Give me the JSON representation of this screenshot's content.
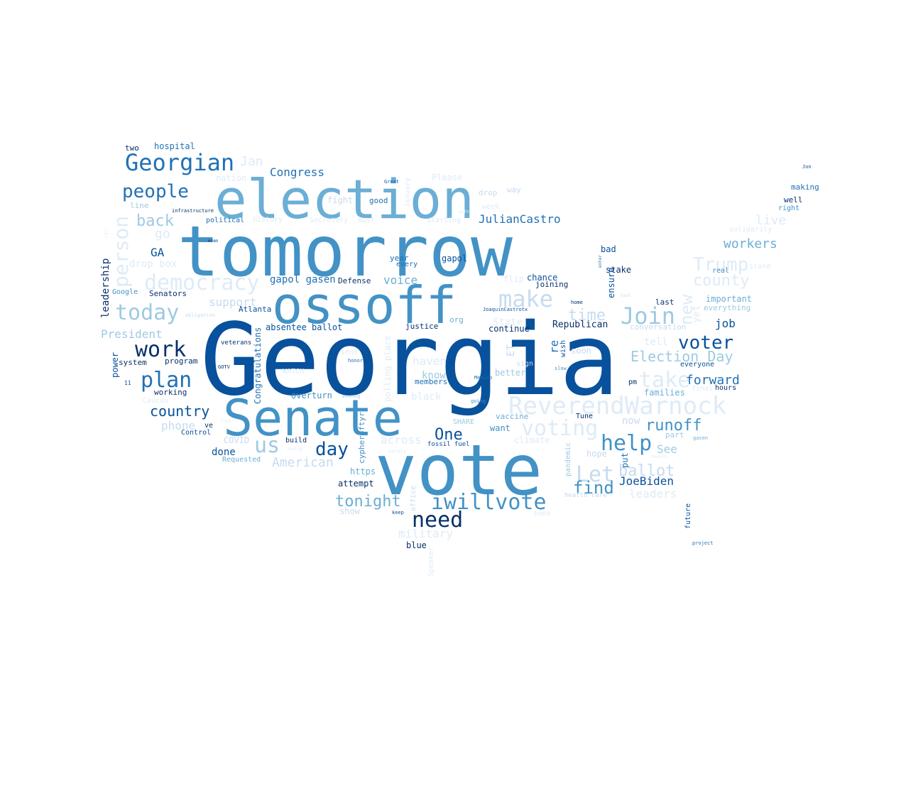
{
  "palette": {
    "c1": "#08306b",
    "c2": "#08519c",
    "c3": "#2171b5",
    "c4": "#4292c6",
    "c5": "#6baed6",
    "c6": "#9ecae1",
    "c7": "#c6dbef",
    "c8": "#deebf7"
  },
  "words": [
    {
      "text": "Georgia",
      "tone": "c2"
    },
    {
      "text": "tomorrow",
      "tone": "c4"
    },
    {
      "text": "vote",
      "tone": "c4"
    },
    {
      "text": "election",
      "tone": "c5"
    },
    {
      "text": "ossoff",
      "tone": "c4"
    },
    {
      "text": "Senate",
      "tone": "c4"
    },
    {
      "text": "ReverendWarnock",
      "tone": "c8"
    },
    {
      "text": "Georgian",
      "tone": "c3"
    },
    {
      "text": "iwillvote",
      "tone": "c4"
    },
    {
      "text": "need",
      "tone": "c1"
    },
    {
      "text": "democracy",
      "tone": "c8"
    },
    {
      "text": "today",
      "tone": "c6"
    },
    {
      "text": "work",
      "tone": "c1"
    },
    {
      "text": "plan",
      "tone": "c3"
    },
    {
      "text": "people",
      "tone": "c3"
    },
    {
      "text": "person",
      "tone": "c8"
    },
    {
      "text": "make",
      "tone": "c7"
    },
    {
      "text": "Join",
      "tone": "c6"
    },
    {
      "text": "help",
      "tone": "c4"
    },
    {
      "text": "take",
      "tone": "c8"
    },
    {
      "text": "Let",
      "tone": "c7"
    },
    {
      "text": "voting",
      "tone": "c8"
    },
    {
      "text": "Trump",
      "tone": "c8"
    },
    {
      "text": "voter",
      "tone": "c2"
    },
    {
      "text": "us",
      "tone": "c6"
    },
    {
      "text": "day",
      "tone": "c2"
    },
    {
      "text": "find",
      "tone": "c4"
    },
    {
      "text": "ballot",
      "tone": "c7"
    },
    {
      "text": "Election Day",
      "tone": "c6"
    },
    {
      "text": "tonight",
      "tone": "c5"
    },
    {
      "text": "county",
      "tone": "c8"
    },
    {
      "text": "runoff",
      "tone": "c4"
    },
    {
      "text": "country",
      "tone": "c2"
    },
    {
      "text": "back",
      "tone": "c6"
    },
    {
      "text": "One",
      "tone": "c2"
    },
    {
      "text": "forward",
      "tone": "c3"
    },
    {
      "text": "new",
      "tone": "c8"
    },
    {
      "text": "time",
      "tone": "c7"
    },
    {
      "text": "American",
      "tone": "c7"
    },
    {
      "text": "workers",
      "tone": "c5"
    },
    {
      "text": "live",
      "tone": "c8"
    },
    {
      "text": "Jan",
      "tone": "c8"
    },
    {
      "text": "military",
      "tone": "c8"
    },
    {
      "text": "haven",
      "tone": "c8"
    },
    {
      "text": "across",
      "tone": "c8"
    },
    {
      "text": "go",
      "tone": "c8"
    },
    {
      "text": "JoeBiden",
      "tone": "c2"
    },
    {
      "text": "President",
      "tone": "c6"
    },
    {
      "text": "Congress",
      "tone": "c3"
    },
    {
      "text": "JulianCastro",
      "tone": "c3"
    },
    {
      "text": "voice",
      "tone": "c5"
    },
    {
      "text": "support",
      "tone": "c7"
    },
    {
      "text": "phone",
      "tone": "c7"
    },
    {
      "text": "leaders",
      "tone": "c8"
    },
    {
      "text": "See",
      "tone": "c6"
    },
    {
      "text": "black",
      "tone": "c8"
    },
    {
      "text": "know",
      "tone": "c6"
    },
    {
      "text": "State",
      "tone": "c8"
    },
    {
      "text": "now",
      "tone": "c7"
    },
    {
      "text": "tell",
      "tone": "c8"
    },
    {
      "text": "job",
      "tone": "c2"
    },
    {
      "text": "GA",
      "tone": "c2"
    },
    {
      "text": "done",
      "tone": "c2"
    },
    {
      "text": "ET",
      "tone": "c7"
    },
    {
      "text": "re",
      "tone": "c3"
    },
    {
      "text": "gapol gasen",
      "tone": "c3"
    },
    {
      "text": "drop box",
      "tone": "c8"
    },
    {
      "text": "leadership",
      "tone": "c1"
    },
    {
      "text": "power",
      "tone": "c2"
    },
    {
      "text": "nation",
      "tone": "c8"
    },
    {
      "text": "fight",
      "tone": "c7"
    },
    {
      "text": "Please",
      "tone": "c8"
    },
    {
      "text": "hospital",
      "tone": "c3"
    },
    {
      "text": "two",
      "tone": "c1"
    },
    {
      "text": "line",
      "tone": "c6"
    },
    {
      "text": "way",
      "tone": "c7"
    },
    {
      "text": "drop",
      "tone": "c7"
    },
    {
      "text": "good",
      "tone": "c3"
    },
    {
      "text": "year",
      "tone": "c3"
    },
    {
      "text": "every",
      "tone": "c3"
    },
    {
      "text": "gapol",
      "tone": "c2"
    },
    {
      "text": "bad",
      "tone": "c2"
    },
    {
      "text": "stake",
      "tone": "c1"
    },
    {
      "text": "chance",
      "tone": "c2"
    },
    {
      "text": "joining",
      "tone": "c1"
    },
    {
      "text": "flip",
      "tone": "c8"
    },
    {
      "text": "Defense",
      "tone": "c1"
    },
    {
      "text": "absentee ballot",
      "tone": "c2"
    },
    {
      "text": "Atlanta",
      "tone": "c2"
    },
    {
      "text": "Senators",
      "tone": "c1"
    },
    {
      "text": "Google",
      "tone": "c4"
    },
    {
      "text": "justice",
      "tone": "c1"
    },
    {
      "text": "org",
      "tone": "c5"
    },
    {
      "text": "continue",
      "tone": "c1"
    },
    {
      "text": "Republican",
      "tone": "c1"
    },
    {
      "text": "ensure",
      "tone": "c2"
    },
    {
      "text": "conversation",
      "tone": "c7"
    },
    {
      "text": "important",
      "tone": "c5"
    },
    {
      "text": "everything",
      "tone": "c6"
    },
    {
      "text": "last",
      "tone": "c1"
    },
    {
      "text": "solidarity",
      "tone": "c8"
    },
    {
      "text": "real",
      "tone": "c4"
    },
    {
      "text": "stand",
      "tone": "c8"
    },
    {
      "text": "making",
      "tone": "c3"
    },
    {
      "text": "well",
      "tone": "c1"
    },
    {
      "text": "right",
      "tone": "c4"
    },
    {
      "text": "Jon",
      "tone": "c2"
    },
    {
      "text": "yet",
      "tone": "c8"
    },
    {
      "text": "everyone",
      "tone": "c2"
    },
    {
      "text": "families",
      "tone": "c5"
    },
    {
      "text": "final",
      "tone": "c8"
    },
    {
      "text": "hours",
      "tone": "c1"
    },
    {
      "text": "pm",
      "tone": "c1"
    },
    {
      "text": "part",
      "tone": "c6"
    },
    {
      "text": "gasen",
      "tone": "c5"
    },
    {
      "text": "Tune",
      "tone": "c1"
    },
    {
      "text": "soon",
      "tone": "c7"
    },
    {
      "text": "wish",
      "tone": "c2"
    },
    {
      "text": "sign",
      "tone": "c7"
    },
    {
      "text": "better",
      "tone": "c6"
    },
    {
      "text": "vaccine",
      "tone": "c5"
    },
    {
      "text": "want",
      "tone": "c4"
    },
    {
      "text": "SHARE",
      "tone": "c6"
    },
    {
      "text": "climate",
      "tone": "c8"
    },
    {
      "text": "pandemic",
      "tone": "c6"
    },
    {
      "text": "hope",
      "tone": "c7"
    },
    {
      "text": "put",
      "tone": "c3"
    },
    {
      "text": "health care",
      "tone": "c7"
    },
    {
      "text": "bank",
      "tone": "c8"
    },
    {
      "text": "future",
      "tone": "c2"
    },
    {
      "text": "project",
      "tone": "c3"
    },
    {
      "text": "members",
      "tone": "c3"
    },
    {
      "text": "fossil fuel",
      "tone": "c2"
    },
    {
      "text": "safety",
      "tone": "c8"
    },
    {
      "text": "https",
      "tone": "c5"
    },
    {
      "text": "attempt",
      "tone": "c1"
    },
    {
      "text": "office",
      "tone": "c7"
    },
    {
      "text": "keep",
      "tone": "c2"
    },
    {
      "text": "blue",
      "tone": "c1"
    },
    {
      "text": "Speaker",
      "tone": "c8"
    },
    {
      "text": "show",
      "tone": "c7"
    },
    {
      "text": "overturn",
      "tone": "c4"
    },
    {
      "text": "polling place",
      "tone": "c8"
    },
    {
      "text": "cypheroftyr",
      "tone": "c4"
    },
    {
      "text": "build",
      "tone": "c1"
    },
    {
      "text": "COVID",
      "tone": "c7"
    },
    {
      "text": "Requested",
      "tone": "c5"
    },
    {
      "text": "Control",
      "tone": "c2"
    },
    {
      "text": "ve",
      "tone": "c1"
    },
    {
      "text": "working",
      "tone": "c1"
    },
    {
      "text": "program",
      "tone": "c1"
    },
    {
      "text": "system",
      "tone": "c1"
    },
    {
      "text": "11",
      "tone": "c2"
    },
    {
      "text": "veterans",
      "tone": "c1"
    },
    {
      "text": "GOTV",
      "tone": "c1"
    },
    {
      "text": "Congratulations",
      "tone": "c3"
    },
    {
      "text": "send",
      "tone": "c8"
    },
    {
      "text": "honor",
      "tone": "c3"
    },
    {
      "text": "WATCH",
      "tone": "c8"
    },
    {
      "text": "Caucus",
      "tone": "c8"
    },
    {
      "text": "political",
      "tone": "c3"
    },
    {
      "text": "infrastructure",
      "tone": "c1"
    },
    {
      "text": "history",
      "tone": "c8"
    },
    {
      "text": "Secretary",
      "tone": "c8"
    },
    {
      "text": "must",
      "tone": "c8"
    },
    {
      "text": "starting",
      "tone": "c8"
    },
    {
      "text": "January",
      "tone": "c8"
    },
    {
      "text": "Great",
      "tone": "c2"
    },
    {
      "text": "JoaquinCastrotx",
      "tone": "c2"
    },
    {
      "text": "Mexico",
      "tone": "c3"
    },
    {
      "text": "obligation",
      "tone": "c7"
    },
    {
      "text": "even",
      "tone": "c1"
    },
    {
      "text": "going",
      "tone": "c4"
    },
    {
      "text": "evening",
      "tone": "c6"
    },
    {
      "text": "home",
      "tone": "c1"
    },
    {
      "text": "slow",
      "tone": "c4"
    },
    {
      "text": "test",
      "tone": "c7"
    },
    {
      "text": "oath",
      "tone": "c8"
    },
    {
      "text": "week",
      "tone": "c8"
    },
    {
      "text": "enter",
      "tone": "c3"
    },
    {
      "text": "Call",
      "tone": "c8"
    },
    {
      "text": "Free",
      "tone": "c8"
    },
    {
      "text": "seeing",
      "tone": "c8"
    },
    {
      "text": "health",
      "tone": "c8"
    }
  ]
}
